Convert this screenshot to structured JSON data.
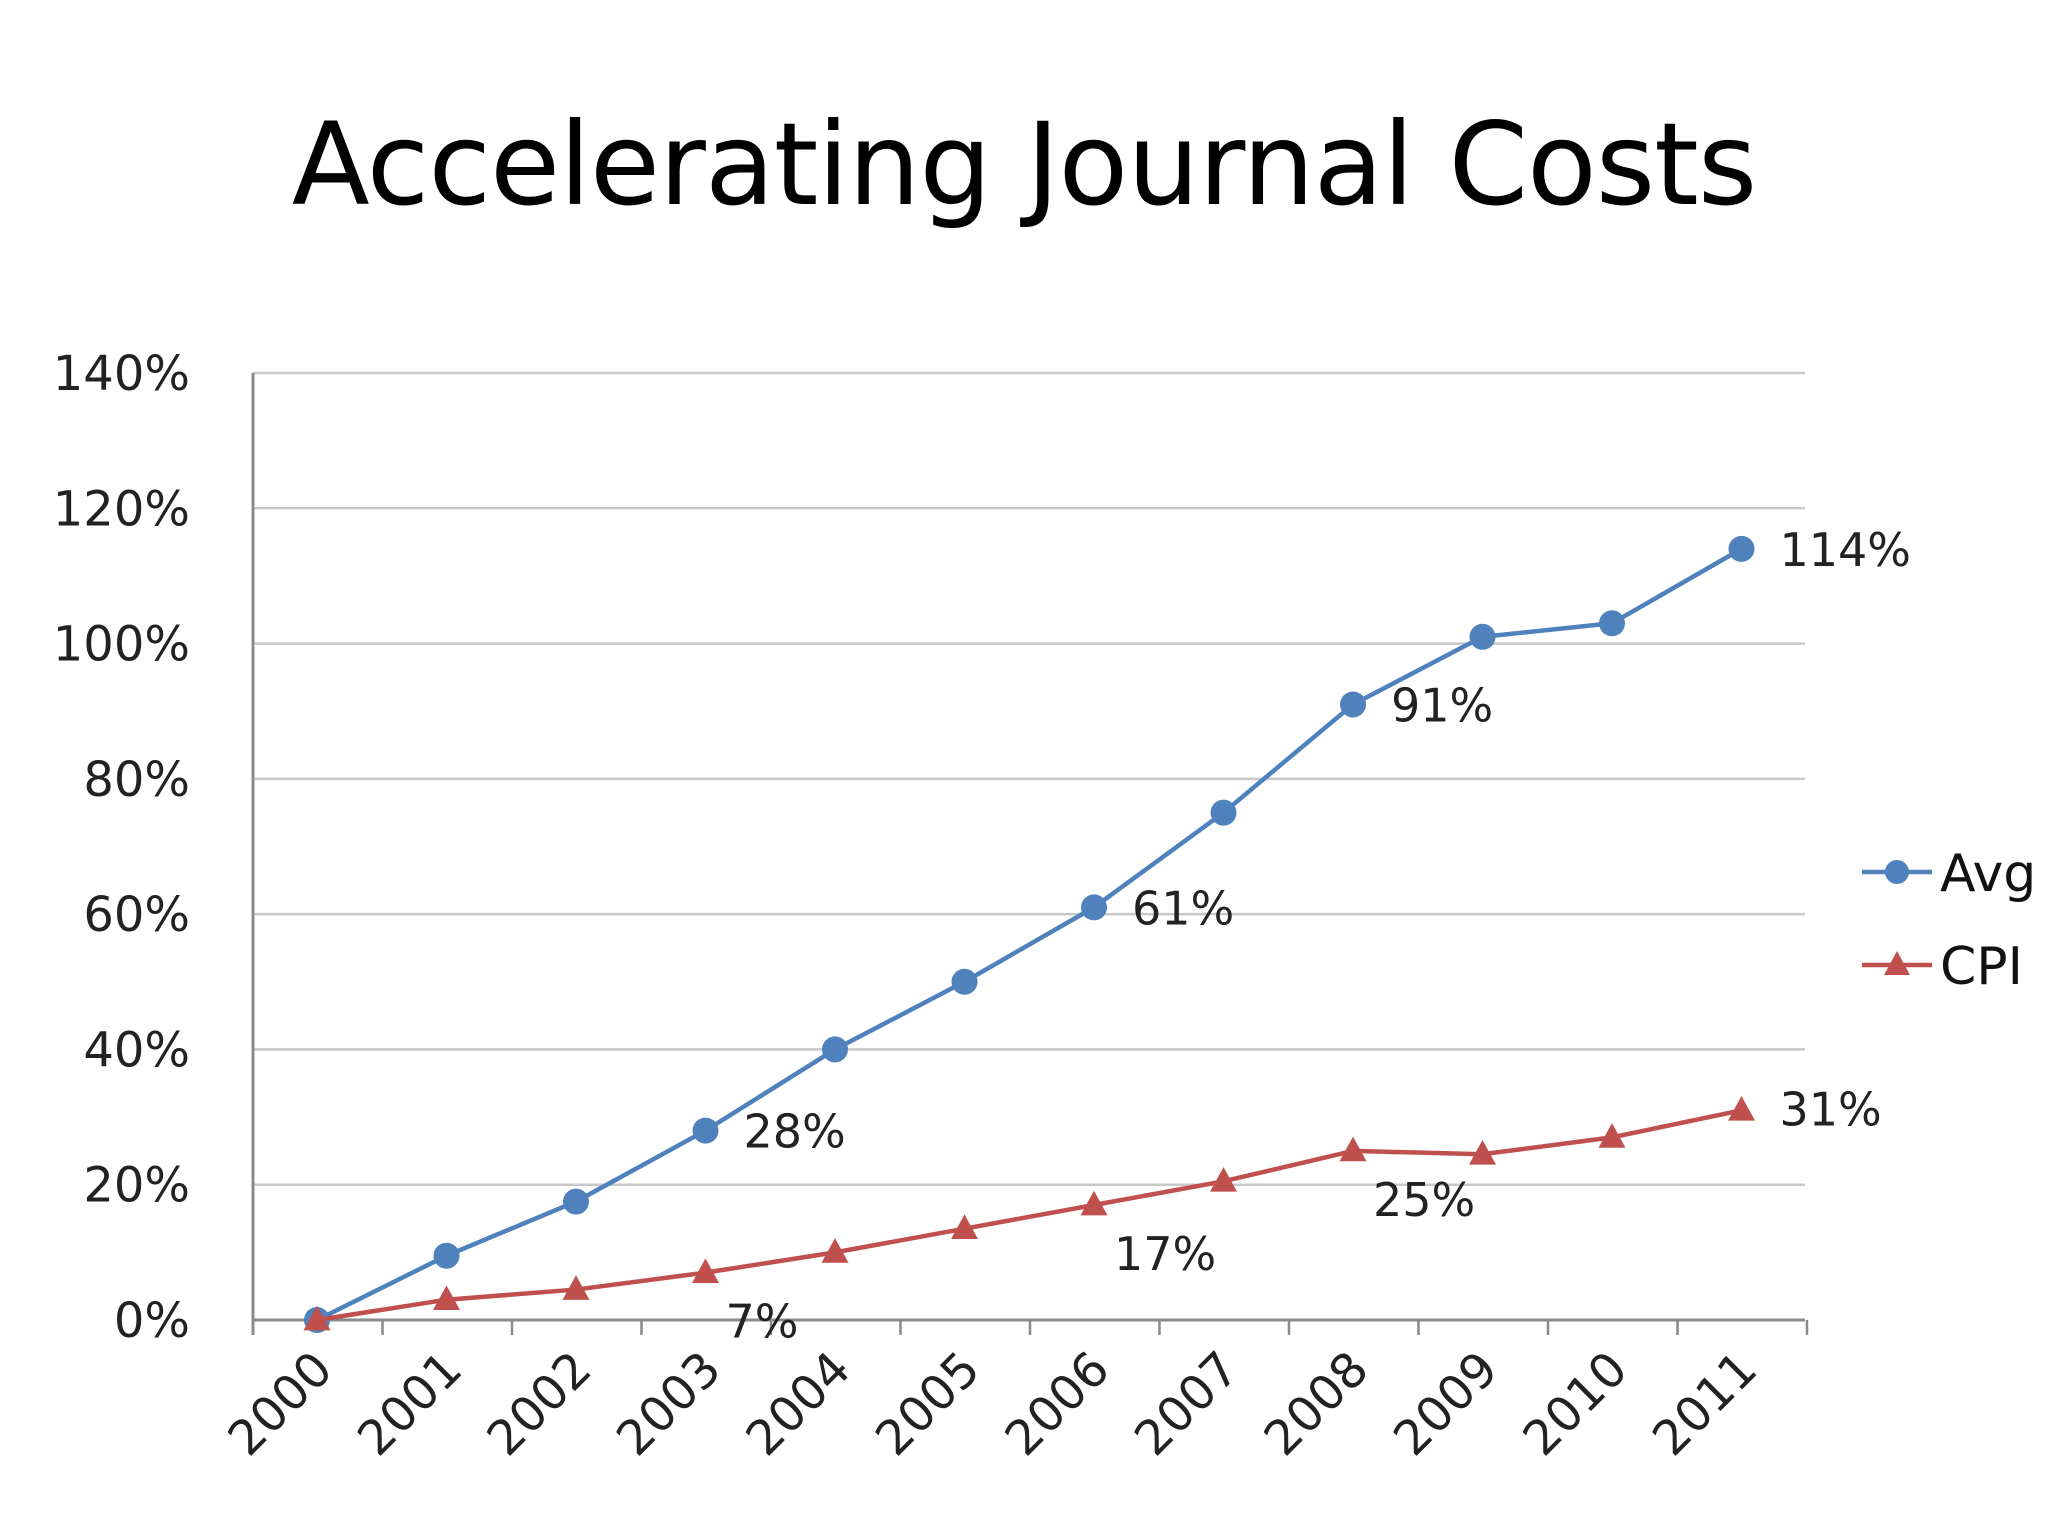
{
  "slide": {
    "title": "Accelerating Journal Costs"
  },
  "chart_data": {
    "type": "line",
    "title": "",
    "xlabel": "",
    "ylabel": "",
    "categories": [
      "2000",
      "2001",
      "2002",
      "2003",
      "2004",
      "2005",
      "2006",
      "2007",
      "2008",
      "2009",
      "2010",
      "2011"
    ],
    "ylim": [
      0,
      140
    ],
    "yticks": [
      0,
      20,
      40,
      60,
      80,
      100,
      120,
      140
    ],
    "ytick_labels": [
      "0%",
      "20%",
      "40%",
      "60%",
      "80%",
      "100%",
      "120%",
      "140%"
    ],
    "grid": "horizontal",
    "legend_position": "right",
    "series": [
      {
        "name": "Avg",
        "color": "#4F81BD",
        "marker": "circle",
        "values": [
          0,
          9.5,
          17.5,
          28,
          40,
          50,
          61,
          75,
          91,
          101,
          103,
          114
        ],
        "labels": [
          {
            "index": 3,
            "text": "28%"
          },
          {
            "index": 6,
            "text": "61%"
          },
          {
            "index": 8,
            "text": "91%"
          },
          {
            "index": 11,
            "text": "114%"
          }
        ]
      },
      {
        "name": "CPI",
        "color": "#C0504D",
        "marker": "triangle",
        "values": [
          0,
          3,
          4.5,
          7,
          10,
          13.5,
          17,
          20.5,
          25,
          24.5,
          27,
          31
        ],
        "labels": [
          {
            "index": 3,
            "text": "7%"
          },
          {
            "index": 6,
            "text": "17%"
          },
          {
            "index": 8,
            "text": "25%"
          },
          {
            "index": 11,
            "text": "31%"
          }
        ]
      }
    ]
  }
}
